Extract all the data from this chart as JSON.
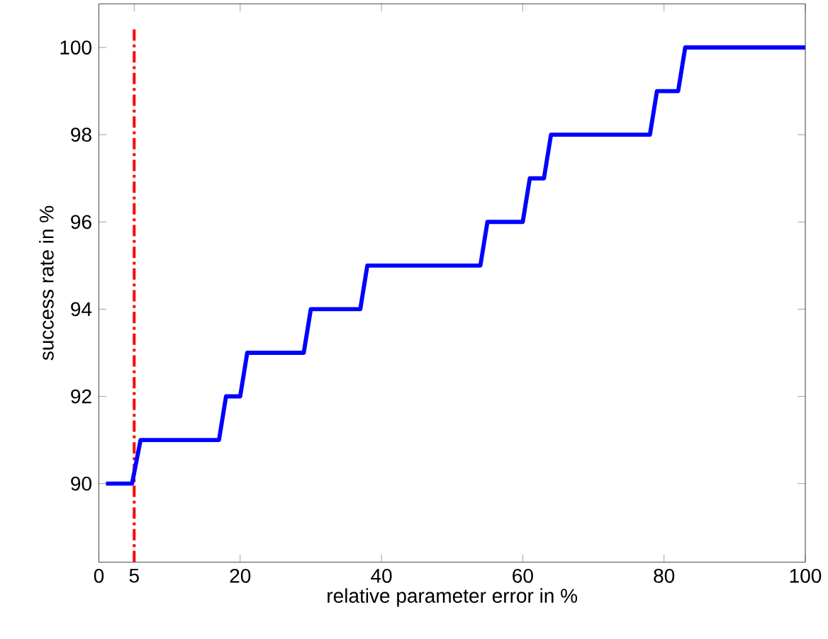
{
  "chart_data": {
    "type": "line",
    "xlabel": "relative parameter error in %",
    "ylabel": "success rate in %",
    "xlim": [
      0,
      100
    ],
    "ylim": [
      88.2,
      101
    ],
    "xticks": [
      0,
      5,
      20,
      40,
      60,
      80,
      100
    ],
    "yticks": [
      90,
      92,
      94,
      96,
      98,
      100
    ],
    "grid": false,
    "marker": "none",
    "line_style": "solid",
    "x": [
      1,
      4.7,
      5.9,
      17,
      18,
      20,
      21,
      29,
      30,
      37,
      38,
      54,
      55,
      60,
      61,
      63,
      64,
      78,
      79,
      82,
      83,
      100
    ],
    "series": [
      {
        "color": "#0000ff",
        "values": [
          90,
          90,
          91,
          91,
          92,
          92,
          93,
          93,
          94,
          94,
          95,
          95,
          96,
          96,
          97,
          97,
          98,
          98,
          99,
          99,
          100,
          100
        ]
      }
    ],
    "ref_lines": [
      {
        "axis": "x",
        "value": 5,
        "color": "#ff0000",
        "line_style": "dashdot"
      }
    ]
  }
}
